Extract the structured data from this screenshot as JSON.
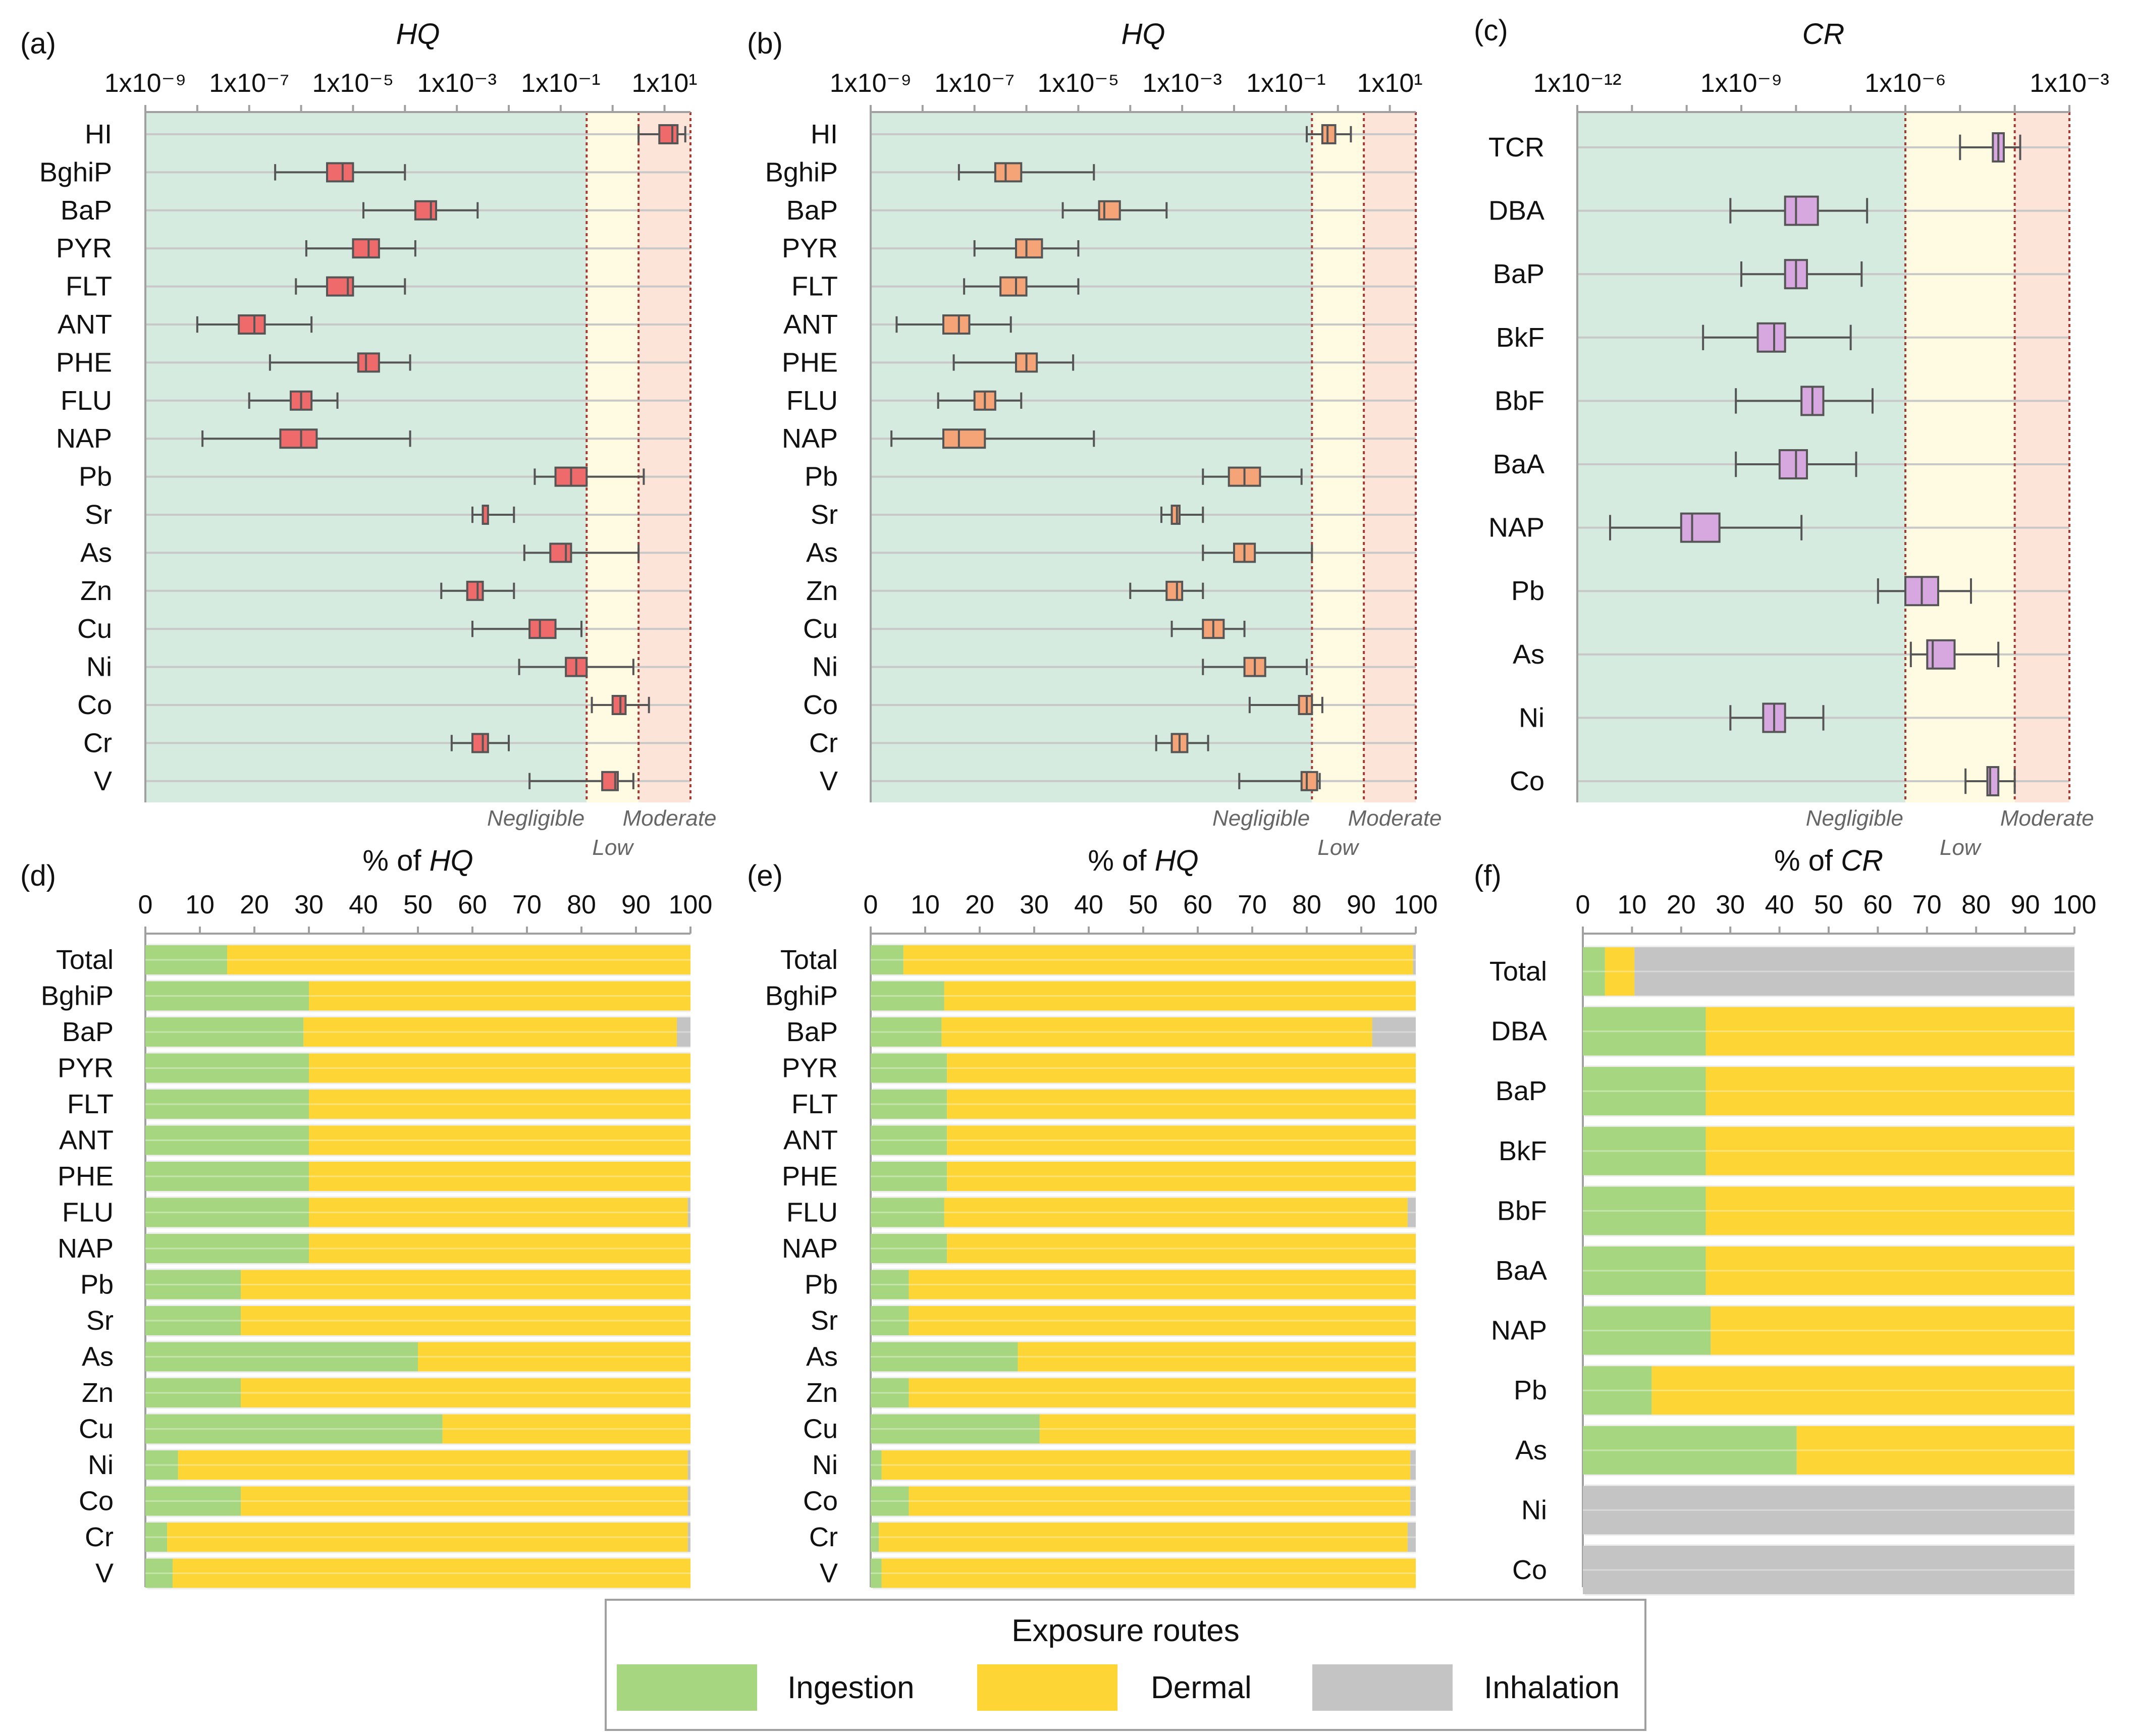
{
  "colors": {
    "zone_negligible": "#d5ebdf",
    "zone_low": "#fffbe3",
    "zone_moderate": "#fde4d8",
    "threshold_line": "#a33a33",
    "grid": "#c8c8c8",
    "axis": "#a0a0a0",
    "box_a": "#ef6b6b",
    "box_b": "#f4a476",
    "box_c": "#d7a7e0",
    "box_edge": "#555555",
    "whisker": "#555555",
    "ingestion": "#a6d67f",
    "dermal": "#fdd534",
    "inhalation": "#c4c4c4",
    "zone_label": "#666666",
    "text": "#111111"
  },
  "legend": {
    "title": "Exposure routes",
    "items": [
      "Ingestion",
      "Dermal",
      "Inhalation"
    ]
  },
  "zone_labels": {
    "negligible": "Negligible",
    "low": "Low",
    "moderate": "Moderate"
  },
  "chart_data": [
    {
      "id": "a",
      "panel_label": "(a)",
      "type": "boxplot",
      "axis_title": "HQ",
      "scale": "log10",
      "xlim_exp": [
        -9,
        1.5
      ],
      "tick_exps": [
        -9,
        -7,
        -5,
        -3,
        -1,
        1
      ],
      "tick_labels": [
        "1x10⁻⁹",
        "1x10⁻⁷",
        "1x10⁻⁵",
        "1x10⁻³",
        "1x10⁻¹",
        "1x10¹"
      ],
      "thresholds_exp": [
        -0.5,
        0.5,
        1.5
      ],
      "categories": [
        "HI",
        "BghiP",
        "BaP",
        "PYR",
        "FLT",
        "ANT",
        "PHE",
        "FLU",
        "NAP",
        "Pb",
        "Sr",
        "As",
        "Zn",
        "Cu",
        "Ni",
        "Co",
        "Cr",
        "V"
      ],
      "stats_log10": [
        {
          "min": 0.5,
          "q1": 0.9,
          "median": 1.15,
          "q3": 1.25,
          "max": 1.4
        },
        {
          "min": -6.5,
          "q1": -5.5,
          "median": -5.2,
          "q3": -5.0,
          "max": -4.0
        },
        {
          "min": -4.8,
          "q1": -3.8,
          "median": -3.5,
          "q3": -3.4,
          "max": -2.6
        },
        {
          "min": -5.9,
          "q1": -5.0,
          "median": -4.7,
          "q3": -4.5,
          "max": -3.8
        },
        {
          "min": -6.1,
          "q1": -5.5,
          "median": -5.1,
          "q3": -5.0,
          "max": -4.0
        },
        {
          "min": -8.0,
          "q1": -7.2,
          "median": -6.9,
          "q3": -6.7,
          "max": -5.8
        },
        {
          "min": -6.6,
          "q1": -4.9,
          "median": -4.75,
          "q3": -4.5,
          "max": -3.9
        },
        {
          "min": -7.0,
          "q1": -6.2,
          "median": -6.0,
          "q3": -5.8,
          "max": -5.3
        },
        {
          "min": -7.9,
          "q1": -6.4,
          "median": -6.0,
          "q3": -5.7,
          "max": -3.9
        },
        {
          "min": -1.5,
          "q1": -1.1,
          "median": -0.8,
          "q3": -0.5,
          "max": 0.6
        },
        {
          "min": -2.7,
          "q1": -2.5,
          "median": -2.5,
          "q3": -2.4,
          "max": -1.9
        },
        {
          "min": -1.7,
          "q1": -1.2,
          "median": -0.9,
          "q3": -0.8,
          "max": 0.5
        },
        {
          "min": -3.3,
          "q1": -2.8,
          "median": -2.6,
          "q3": -2.5,
          "max": -1.9
        },
        {
          "min": -2.7,
          "q1": -1.6,
          "median": -1.4,
          "q3": -1.1,
          "max": -0.6
        },
        {
          "min": -1.8,
          "q1": -0.9,
          "median": -0.7,
          "q3": -0.5,
          "max": 0.4
        },
        {
          "min": -0.4,
          "q1": 0.0,
          "median": 0.15,
          "q3": 0.25,
          "max": 0.7
        },
        {
          "min": -3.1,
          "q1": -2.7,
          "median": -2.5,
          "q3": -2.4,
          "max": -2.0
        },
        {
          "min": -1.6,
          "q1": -0.2,
          "median": 0.05,
          "q3": 0.1,
          "max": 0.4
        }
      ]
    },
    {
      "id": "b",
      "panel_label": "(b)",
      "type": "boxplot",
      "axis_title": "HQ",
      "scale": "log10",
      "xlim_exp": [
        -9,
        1.5
      ],
      "tick_exps": [
        -9,
        -7,
        -5,
        -3,
        -1,
        1
      ],
      "tick_labels": [
        "1x10⁻⁹",
        "1x10⁻⁷",
        "1x10⁻⁵",
        "1x10⁻³",
        "1x10⁻¹",
        "1x10¹"
      ],
      "thresholds_exp": [
        -0.5,
        0.5,
        1.5
      ],
      "categories": [
        "HI",
        "BghiP",
        "BaP",
        "PYR",
        "FLT",
        "ANT",
        "PHE",
        "FLU",
        "NAP",
        "Pb",
        "Sr",
        "As",
        "Zn",
        "Cu",
        "Ni",
        "Co",
        "Cr",
        "V"
      ],
      "stats_log10": [
        {
          "min": -0.6,
          "q1": -0.3,
          "median": -0.2,
          "q3": -0.05,
          "max": 0.25
        },
        {
          "min": -7.3,
          "q1": -6.6,
          "median": -6.4,
          "q3": -6.1,
          "max": -4.7
        },
        {
          "min": -5.3,
          "q1": -4.6,
          "median": -4.5,
          "q3": -4.2,
          "max": -3.3
        },
        {
          "min": -7.0,
          "q1": -6.2,
          "median": -6.0,
          "q3": -5.7,
          "max": -5.0
        },
        {
          "min": -7.2,
          "q1": -6.5,
          "median": -6.2,
          "q3": -6.0,
          "max": -5.0
        },
        {
          "min": -8.5,
          "q1": -7.6,
          "median": -7.3,
          "q3": -7.1,
          "max": -6.3
        },
        {
          "min": -7.4,
          "q1": -6.2,
          "median": -6.0,
          "q3": -5.8,
          "max": -5.1
        },
        {
          "min": -7.7,
          "q1": -7.0,
          "median": -6.8,
          "q3": -6.6,
          "max": -6.1
        },
        {
          "min": -8.6,
          "q1": -7.6,
          "median": -7.3,
          "q3": -6.8,
          "max": -4.7
        },
        {
          "min": -2.6,
          "q1": -2.1,
          "median": -1.8,
          "q3": -1.5,
          "max": -0.7
        },
        {
          "min": -3.4,
          "q1": -3.2,
          "median": -3.1,
          "q3": -3.05,
          "max": -2.6
        },
        {
          "min": -2.6,
          "q1": -2.0,
          "median": -1.8,
          "q3": -1.6,
          "max": -0.5
        },
        {
          "min": -4.0,
          "q1": -3.3,
          "median": -3.1,
          "q3": -3.0,
          "max": -2.6
        },
        {
          "min": -3.2,
          "q1": -2.6,
          "median": -2.4,
          "q3": -2.2,
          "max": -1.8
        },
        {
          "min": -2.6,
          "q1": -1.8,
          "median": -1.6,
          "q3": -1.4,
          "max": -0.6
        },
        {
          "min": -1.7,
          "q1": -0.75,
          "median": -0.6,
          "q3": -0.5,
          "max": -0.3
        },
        {
          "min": -3.5,
          "q1": -3.2,
          "median": -3.05,
          "q3": -2.9,
          "max": -2.5
        },
        {
          "min": -1.9,
          "q1": -0.7,
          "median": -0.6,
          "q3": -0.4,
          "max": -0.35
        }
      ]
    },
    {
      "id": "c",
      "panel_label": "(c)",
      "type": "boxplot",
      "axis_title": "CR",
      "scale": "log10",
      "xlim_exp": [
        -12,
        -3
      ],
      "tick_exps": [
        -12,
        -9,
        -6,
        -3
      ],
      "tick_labels": [
        "1x10⁻¹²",
        "1x10⁻⁹",
        "1x10⁻⁶",
        "1x10⁻³"
      ],
      "thresholds_exp": [
        -6,
        -4,
        -3
      ],
      "categories": [
        "TCR",
        "DBA",
        "BaP",
        "BkF",
        "BbF",
        "BaA",
        "NAP",
        "Pb",
        "As",
        "Ni",
        "Co"
      ],
      "stats_log10": [
        {
          "min": -5.0,
          "q1": -4.4,
          "median": -4.3,
          "q3": -4.2,
          "max": -3.9
        },
        {
          "min": -9.2,
          "q1": -8.2,
          "median": -8.0,
          "q3": -7.6,
          "max": -6.7
        },
        {
          "min": -9.0,
          "q1": -8.2,
          "median": -8.0,
          "q3": -7.8,
          "max": -6.8
        },
        {
          "min": -9.7,
          "q1": -8.7,
          "median": -8.4,
          "q3": -8.2,
          "max": -7.0
        },
        {
          "min": -9.1,
          "q1": -7.9,
          "median": -7.7,
          "q3": -7.5,
          "max": -6.6
        },
        {
          "min": -9.1,
          "q1": -8.3,
          "median": -8.0,
          "q3": -7.8,
          "max": -6.9
        },
        {
          "min": -11.4,
          "q1": -10.1,
          "median": -9.9,
          "q3": -9.4,
          "max": -7.9
        },
        {
          "min": -6.5,
          "q1": -6.0,
          "median": -5.7,
          "q3": -5.4,
          "max": -4.8
        },
        {
          "min": -5.9,
          "q1": -5.6,
          "median": -5.5,
          "q3": -5.1,
          "max": -4.3
        },
        {
          "min": -9.2,
          "q1": -8.6,
          "median": -8.4,
          "q3": -8.2,
          "max": -7.5
        },
        {
          "min": -4.9,
          "q1": -4.5,
          "median": -4.45,
          "q3": -4.3,
          "max": -4.0
        }
      ]
    },
    {
      "id": "d",
      "panel_label": "(d)",
      "type": "bar",
      "stacked": true,
      "orientation": "horizontal",
      "axis_title": "% of HQ",
      "xlim": [
        0,
        100
      ],
      "ticks": [
        0,
        10,
        20,
        30,
        40,
        50,
        60,
        70,
        80,
        90,
        100
      ],
      "categories": [
        "Total",
        "BghiP",
        "BaP",
        "PYR",
        "FLT",
        "ANT",
        "PHE",
        "FLU",
        "NAP",
        "Pb",
        "Sr",
        "As",
        "Zn",
        "Cu",
        "Ni",
        "Co",
        "Cr",
        "V"
      ],
      "series": [
        {
          "name": "Ingestion",
          "values": [
            15,
            30,
            29,
            30,
            30,
            30,
            30,
            30,
            30,
            17.5,
            17.5,
            50,
            17.5,
            54.5,
            6,
            17.5,
            4,
            5
          ]
        },
        {
          "name": "Dermal",
          "values": [
            85,
            70,
            68.5,
            70,
            70,
            70,
            70,
            69.5,
            70,
            82.5,
            82.5,
            50,
            82.5,
            45.5,
            93.5,
            82,
            95.5,
            95
          ]
        },
        {
          "name": "Inhalation",
          "values": [
            0,
            0,
            2.5,
            0,
            0,
            0,
            0,
            0.5,
            0,
            0,
            0,
            0,
            0,
            0,
            0.5,
            0.5,
            0.5,
            0
          ]
        }
      ]
    },
    {
      "id": "e",
      "panel_label": "(e)",
      "type": "bar",
      "stacked": true,
      "orientation": "horizontal",
      "axis_title": "% of HQ",
      "xlim": [
        0,
        100
      ],
      "ticks": [
        0,
        10,
        20,
        30,
        40,
        50,
        60,
        70,
        80,
        90,
        100
      ],
      "categories": [
        "Total",
        "BghiP",
        "BaP",
        "PYR",
        "FLT",
        "ANT",
        "PHE",
        "FLU",
        "NAP",
        "Pb",
        "Sr",
        "As",
        "Zn",
        "Cu",
        "Ni",
        "Co",
        "Cr",
        "V"
      ],
      "series": [
        {
          "name": "Ingestion",
          "values": [
            6,
            13.5,
            13,
            14,
            14,
            14,
            14,
            13.5,
            14,
            7,
            7,
            27,
            7,
            31,
            2,
            7,
            1.5,
            2
          ]
        },
        {
          "name": "Dermal",
          "values": [
            93.5,
            86.5,
            79,
            86,
            86,
            86,
            86,
            85,
            86,
            93,
            93,
            73,
            93,
            69,
            97,
            92,
            97,
            98
          ]
        },
        {
          "name": "Inhalation",
          "values": [
            0.5,
            0,
            8,
            0,
            0,
            0,
            0,
            1.5,
            0,
            0,
            0,
            0,
            0,
            0,
            1,
            1,
            1.5,
            0
          ]
        }
      ]
    },
    {
      "id": "f",
      "panel_label": "(f)",
      "type": "bar",
      "stacked": true,
      "orientation": "horizontal",
      "axis_title": "% of CR",
      "xlim": [
        0,
        100
      ],
      "ticks": [
        0,
        10,
        20,
        30,
        40,
        50,
        60,
        70,
        80,
        90,
        100
      ],
      "categories": [
        "Total",
        "DBA",
        "BaP",
        "BkF",
        "BbF",
        "BaA",
        "NAP",
        "Pb",
        "As",
        "Ni",
        "Co"
      ],
      "series": [
        {
          "name": "Ingestion",
          "values": [
            4.5,
            25,
            25,
            25,
            25,
            25,
            26,
            14,
            43.5,
            0,
            0
          ]
        },
        {
          "name": "Dermal",
          "values": [
            6,
            75,
            75,
            75,
            75,
            75,
            74,
            86,
            56.5,
            0,
            0
          ]
        },
        {
          "name": "Inhalation",
          "values": [
            89.5,
            0,
            0,
            0,
            0,
            0,
            0,
            0,
            0,
            100,
            100
          ]
        }
      ]
    }
  ]
}
